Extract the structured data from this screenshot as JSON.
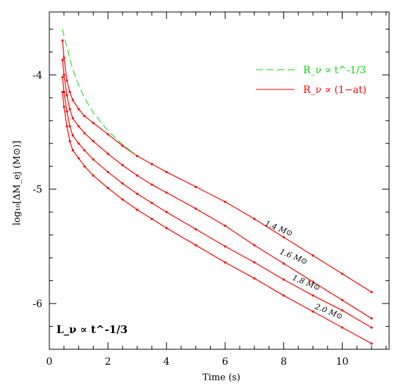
{
  "chart_data": {
    "type": "line",
    "xlabel": "Time  (s)",
    "ylabel": "log₁₀[ΔM_ej (M⊙)]",
    "xlim": [
      0,
      11.6
    ],
    "ylim": [
      -6.4,
      -3.45
    ],
    "x_ticks": [
      "0",
      "2",
      "4",
      "6",
      "8",
      "10"
    ],
    "y_ticks": [
      "-4",
      "-5",
      "-6"
    ],
    "grid": false,
    "legend_position": "top-right",
    "legend": [
      {
        "label": "R_ν ∝ t^-1/3",
        "color": "#00dd00",
        "style": "dashed"
      },
      {
        "label": "R_ν ∝ (1−at)",
        "color": "#ff0000",
        "style": "solid"
      }
    ],
    "annotation": "L_ν ∝ t^-1/3",
    "series": [
      {
        "name": "1.4 M⊙",
        "color": "#ff0000",
        "x": [
          0.45,
          0.5,
          0.6,
          0.7,
          0.8,
          1.0,
          1.2,
          1.5,
          2.0,
          2.5,
          3.0,
          3.5,
          4.0,
          5.0,
          6.0,
          7.0,
          8.0,
          9.0,
          10.0,
          11.0
        ],
        "y": [
          -3.7,
          -3.85,
          -4.05,
          -4.15,
          -4.22,
          -4.3,
          -4.36,
          -4.42,
          -4.52,
          -4.62,
          -4.71,
          -4.78,
          -4.85,
          -4.98,
          -5.11,
          -5.26,
          -5.42,
          -5.58,
          -5.74,
          -5.9
        ]
      },
      {
        "name": "1.6 M⊙",
        "color": "#ff0000",
        "x": [
          0.45,
          0.5,
          0.6,
          0.7,
          0.8,
          1.0,
          1.2,
          1.5,
          2.0,
          2.5,
          3.0,
          3.5,
          4.0,
          5.0,
          6.0,
          7.0,
          8.0,
          9.0,
          10.0,
          11.0
        ],
        "y": [
          -3.87,
          -4.0,
          -4.18,
          -4.3,
          -4.38,
          -4.45,
          -4.51,
          -4.58,
          -4.69,
          -4.79,
          -4.88,
          -4.96,
          -5.03,
          -5.17,
          -5.32,
          -5.49,
          -5.65,
          -5.81,
          -5.97,
          -6.13
        ]
      },
      {
        "name": "1.8 M⊙",
        "color": "#ff0000",
        "x": [
          0.45,
          0.5,
          0.6,
          0.7,
          0.8,
          1.0,
          1.2,
          1.5,
          2.0,
          2.5,
          3.0,
          3.5,
          4.0,
          5.0,
          6.0,
          7.0,
          8.0,
          9.0,
          10.0,
          11.0
        ],
        "y": [
          -4.02,
          -4.15,
          -4.32,
          -4.45,
          -4.53,
          -4.6,
          -4.66,
          -4.74,
          -4.85,
          -4.95,
          -5.04,
          -5.12,
          -5.2,
          -5.35,
          -5.5,
          -5.64,
          -5.79,
          -5.93,
          -6.06,
          -6.21
        ]
      },
      {
        "name": "2.0 M⊙",
        "color": "#ff0000",
        "x": [
          0.45,
          0.5,
          0.6,
          0.7,
          0.8,
          1.0,
          1.2,
          1.5,
          2.0,
          2.5,
          3.0,
          3.5,
          4.0,
          5.0,
          6.0,
          7.0,
          8.0,
          9.0,
          10.0,
          11.0
        ],
        "y": [
          -4.15,
          -4.28,
          -4.45,
          -4.58,
          -4.66,
          -4.73,
          -4.8,
          -4.88,
          -4.99,
          -5.09,
          -5.18,
          -5.26,
          -5.34,
          -5.49,
          -5.64,
          -5.78,
          -5.93,
          -6.07,
          -6.21,
          -6.35
        ]
      },
      {
        "name": "",
        "color": "#00dd00",
        "style": "dashed",
        "x": [
          0.45,
          0.5,
          0.6,
          0.7,
          0.8,
          1.0,
          1.2,
          1.5,
          2.0,
          2.5,
          3.0
        ],
        "y": [
          -3.6,
          -3.66,
          -3.76,
          -3.86,
          -3.95,
          -4.09,
          -4.2,
          -4.33,
          -4.49,
          -4.61,
          -4.71
        ]
      }
    ],
    "curve_labels": [
      "1.4 M⊙",
      "1.6 M⊙",
      "1.8 M⊙",
      "2.0 M⊙"
    ]
  }
}
